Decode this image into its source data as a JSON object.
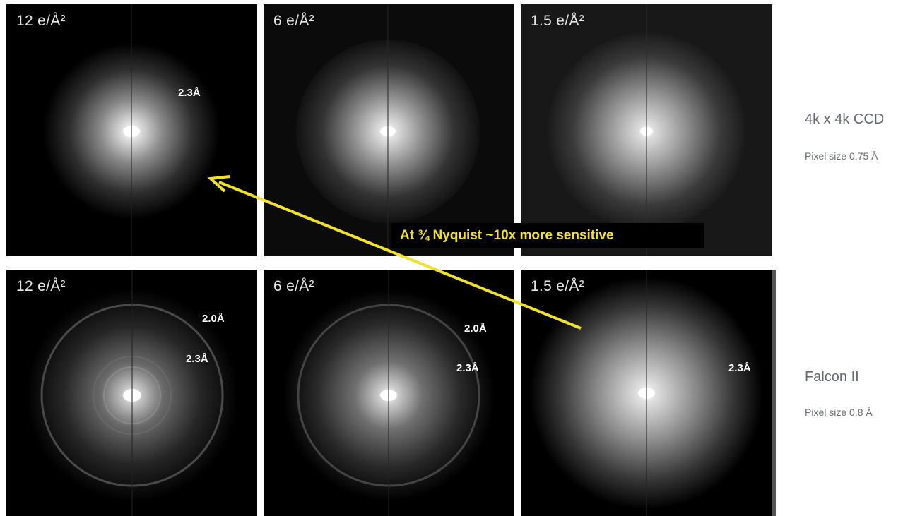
{
  "panels": [
    [
      {
        "dose": "12 e/Å²",
        "res_labels": [
          {
            "text": "2.3Å"
          }
        ],
        "ring": false
      },
      {
        "dose": "6 e/Å²",
        "res_labels": [],
        "ring": false
      },
      {
        "dose": "1.5 e/Å²",
        "res_labels": [],
        "ring": false
      }
    ],
    [
      {
        "dose": "12 e/Å²",
        "res_labels": [
          {
            "text": "2.0Å"
          },
          {
            "text": "2.3Å"
          }
        ],
        "ring": true
      },
      {
        "dose": "6 e/Å²",
        "res_labels": [
          {
            "text": "2.0Å"
          },
          {
            "text": "2.3Å"
          }
        ],
        "ring": true
      },
      {
        "dose": "1.5 e/Å²",
        "res_labels": [
          {
            "text": "2.3Å"
          }
        ],
        "ring": false
      }
    ]
  ],
  "detectors": {
    "top": {
      "name": "4k x 4k CCD",
      "pixel_size": "Pixel size 0.75 Å"
    },
    "bottom": {
      "name": "Falcon II",
      "pixel_size": "Pixel size 0.8 Å"
    }
  },
  "callout": {
    "text": "At ¾ Nyquist  ~10x more sensitive",
    "color": "#f5e32a"
  }
}
